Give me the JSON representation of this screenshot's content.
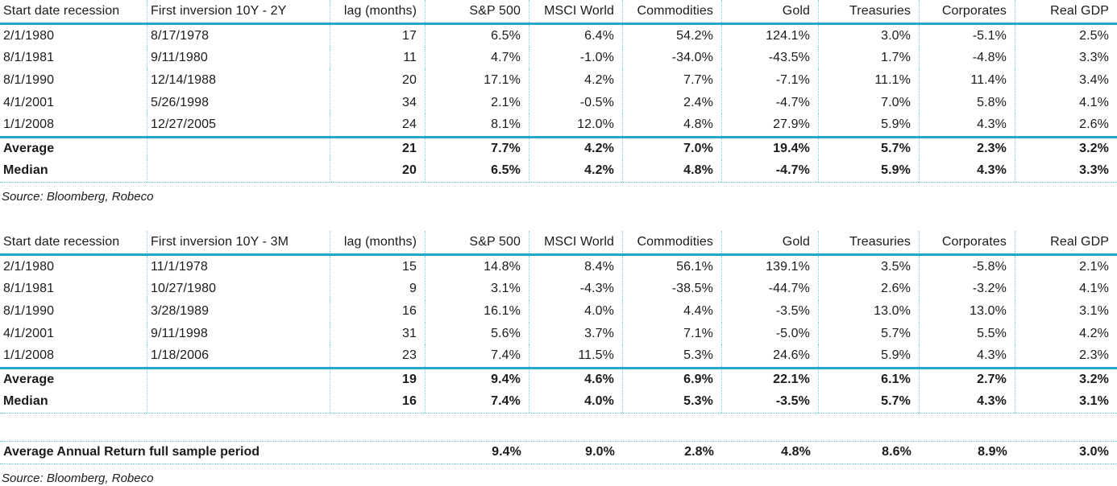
{
  "colors": {
    "accent_rule": "#23a7cc",
    "dotted_separator": "#6ecbe3",
    "text": "#1b1b1b"
  },
  "tables": [
    {
      "columns": [
        "Start date recession",
        "First inversion 10Y - 2Y",
        "lag (months)",
        "S&P 500",
        "MSCI World",
        "Commodities",
        "Gold",
        "Treasuries",
        "Corporates",
        "Real GDP"
      ],
      "rows": [
        [
          "2/1/1980",
          "8/17/1978",
          "17",
          "6.5%",
          "6.4%",
          "54.2%",
          "124.1%",
          "3.0%",
          "-5.1%",
          "2.5%"
        ],
        [
          "8/1/1981",
          "9/11/1980",
          "11",
          "4.7%",
          "-1.0%",
          "-34.0%",
          "-43.5%",
          "1.7%",
          "-4.8%",
          "3.3%"
        ],
        [
          "8/1/1990",
          "12/14/1988",
          "20",
          "17.1%",
          "4.2%",
          "7.7%",
          "-7.1%",
          "11.1%",
          "11.4%",
          "3.4%"
        ],
        [
          "4/1/2001",
          "5/26/1998",
          "34",
          "2.1%",
          "-0.5%",
          "2.4%",
          "-4.7%",
          "7.0%",
          "5.8%",
          "4.1%"
        ],
        [
          "1/1/2008",
          "12/27/2005",
          "24",
          "8.1%",
          "12.0%",
          "4.8%",
          "27.9%",
          "5.9%",
          "4.3%",
          "2.6%"
        ]
      ],
      "summary_rows": [
        [
          "Average",
          "",
          "21",
          "7.7%",
          "4.2%",
          "7.0%",
          "19.4%",
          "5.7%",
          "2.3%",
          "3.2%"
        ],
        [
          "Median",
          "",
          "20",
          "6.5%",
          "4.2%",
          "4.8%",
          "-4.7%",
          "5.9%",
          "4.3%",
          "3.3%"
        ]
      ],
      "source": "Source: Bloomberg, Robeco"
    },
    {
      "columns": [
        "Start date recession",
        "First inversion 10Y - 3M",
        "lag (months)",
        "S&P 500",
        "MSCI World",
        "Commodities",
        "Gold",
        "Treasuries",
        "Corporates",
        "Real GDP"
      ],
      "rows": [
        [
          "2/1/1980",
          "11/1/1978",
          "15",
          "14.8%",
          "8.4%",
          "56.1%",
          "139.1%",
          "3.5%",
          "-5.8%",
          "2.1%"
        ],
        [
          "8/1/1981",
          "10/27/1980",
          "9",
          "3.1%",
          "-4.3%",
          "-38.5%",
          "-44.7%",
          "2.6%",
          "-3.2%",
          "4.1%"
        ],
        [
          "8/1/1990",
          "3/28/1989",
          "16",
          "16.1%",
          "4.0%",
          "4.4%",
          "-3.5%",
          "13.0%",
          "13.0%",
          "3.1%"
        ],
        [
          "4/1/2001",
          "9/11/1998",
          "31",
          "5.6%",
          "3.7%",
          "7.1%",
          "-5.0%",
          "5.7%",
          "5.5%",
          "4.2%"
        ],
        [
          "1/1/2008",
          "1/18/2006",
          "23",
          "7.4%",
          "11.5%",
          "5.3%",
          "24.6%",
          "5.9%",
          "4.3%",
          "2.3%"
        ]
      ],
      "summary_rows": [
        [
          "Average",
          "",
          "19",
          "9.4%",
          "4.6%",
          "6.9%",
          "22.1%",
          "6.1%",
          "2.7%",
          "3.2%"
        ],
        [
          "Median",
          "",
          "16",
          "7.4%",
          "4.0%",
          "5.3%",
          "-3.5%",
          "5.7%",
          "4.3%",
          "3.1%"
        ]
      ],
      "source": "Source: Bloomberg, Robeco"
    }
  ],
  "footer": {
    "label": "Average Annual Return full sample period",
    "values": [
      "9.4%",
      "9.0%",
      "2.8%",
      "4.8%",
      "8.6%",
      "8.9%",
      "3.0%"
    ],
    "source": "Source: Bloomberg, Robeco"
  }
}
